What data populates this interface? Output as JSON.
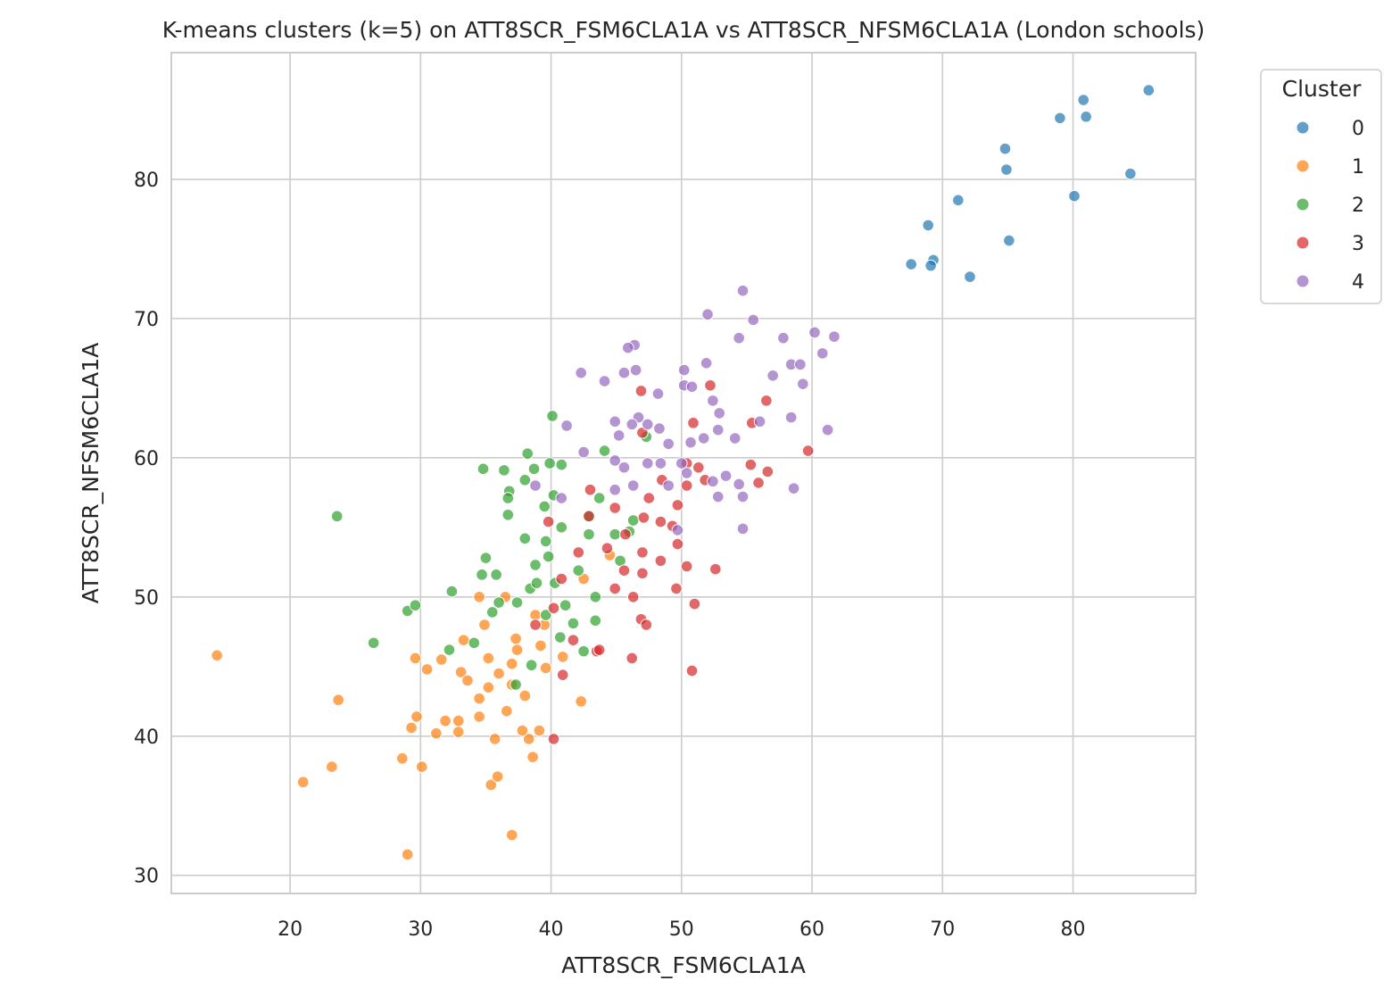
{
  "chart_data": {
    "type": "scatter",
    "title": "K-means clusters (k=5) on ATT8SCR_FSM6CLA1A vs ATT8SCR_NFSM6CLA1A (London schools)",
    "xlabel": "ATT8SCR_FSM6CLA1A",
    "ylabel": "ATT8SCR_NFSM6CLA1A",
    "xlim": [
      10.9,
      89.4
    ],
    "ylim": [
      28.7,
      89.1
    ],
    "xticks": [
      20,
      30,
      40,
      50,
      60,
      70,
      80
    ],
    "yticks": [
      30,
      40,
      50,
      60,
      70,
      80
    ],
    "grid": true,
    "legend": {
      "title": "Cluster",
      "placement": "outside-top-right"
    },
    "series": [
      {
        "name": "0",
        "color": "#1f77b4",
        "points": [
          [
            85.8,
            86.4
          ],
          [
            80.8,
            85.7
          ],
          [
            81.0,
            84.5
          ],
          [
            79.0,
            84.4
          ],
          [
            74.8,
            82.2
          ],
          [
            74.9,
            80.7
          ],
          [
            84.4,
            80.4
          ],
          [
            80.1,
            78.8
          ],
          [
            71.2,
            78.5
          ],
          [
            68.9,
            76.7
          ],
          [
            75.1,
            75.6
          ],
          [
            69.3,
            74.2
          ],
          [
            67.6,
            73.9
          ],
          [
            69.1,
            73.8
          ],
          [
            72.1,
            73.0
          ]
        ]
      },
      {
        "name": "1",
        "color": "#ff7f0e",
        "points": [
          [
            14.4,
            45.8
          ],
          [
            21.0,
            36.7
          ],
          [
            23.2,
            37.8
          ],
          [
            23.7,
            42.6
          ],
          [
            29.0,
            31.5
          ],
          [
            37.0,
            32.9
          ],
          [
            28.6,
            38.4
          ],
          [
            30.1,
            37.8
          ],
          [
            29.3,
            40.6
          ],
          [
            29.7,
            41.4
          ],
          [
            29.6,
            45.6
          ],
          [
            30.5,
            44.8
          ],
          [
            31.2,
            40.2
          ],
          [
            31.9,
            41.1
          ],
          [
            32.9,
            41.1
          ],
          [
            32.9,
            40.3
          ],
          [
            33.1,
            44.6
          ],
          [
            33.6,
            44.0
          ],
          [
            34.5,
            42.7
          ],
          [
            34.5,
            41.4
          ],
          [
            35.4,
            36.5
          ],
          [
            35.9,
            37.1
          ],
          [
            35.7,
            39.8
          ],
          [
            36.6,
            41.8
          ],
          [
            38.3,
            39.8
          ],
          [
            38.6,
            38.5
          ],
          [
            39.1,
            40.4
          ],
          [
            42.3,
            42.5
          ],
          [
            34.5,
            50.0
          ],
          [
            36.5,
            50.0
          ],
          [
            33.3,
            46.9
          ],
          [
            31.6,
            45.5
          ],
          [
            37.3,
            47.0
          ],
          [
            39.2,
            46.5
          ],
          [
            39.6,
            44.9
          ],
          [
            40.9,
            45.7
          ],
          [
            42.5,
            51.3
          ],
          [
            44.5,
            53.0
          ],
          [
            35.2,
            45.6
          ],
          [
            37.0,
            43.7
          ],
          [
            36.0,
            44.5
          ],
          [
            37.0,
            45.2
          ],
          [
            34.9,
            48.0
          ],
          [
            38.0,
            42.9
          ],
          [
            37.8,
            40.4
          ],
          [
            35.2,
            43.5
          ],
          [
            38.8,
            48.7
          ],
          [
            39.5,
            48.0
          ],
          [
            37.4,
            46.2
          ]
        ]
      },
      {
        "name": "2",
        "color": "#2ca02c",
        "points": [
          [
            23.6,
            55.8
          ],
          [
            26.4,
            46.7
          ],
          [
            29.0,
            49.0
          ],
          [
            29.6,
            49.4
          ],
          [
            32.4,
            50.4
          ],
          [
            32.2,
            46.2
          ],
          [
            34.8,
            59.2
          ],
          [
            36.4,
            59.1
          ],
          [
            36.8,
            57.6
          ],
          [
            36.7,
            57.1
          ],
          [
            36.7,
            55.9
          ],
          [
            35.0,
            52.8
          ],
          [
            38.2,
            60.3
          ],
          [
            40.1,
            63.0
          ],
          [
            40.8,
            59.5
          ],
          [
            38.7,
            59.2
          ],
          [
            38.0,
            58.4
          ],
          [
            39.9,
            59.6
          ],
          [
            38.0,
            54.2
          ],
          [
            39.5,
            56.5
          ],
          [
            39.6,
            54.0
          ],
          [
            40.2,
            57.3
          ],
          [
            40.8,
            55.0
          ],
          [
            38.8,
            52.3
          ],
          [
            39.8,
            52.9
          ],
          [
            40.3,
            51.0
          ],
          [
            38.4,
            50.6
          ],
          [
            37.4,
            49.6
          ],
          [
            36.0,
            49.6
          ],
          [
            35.5,
            48.9
          ],
          [
            34.7,
            51.6
          ],
          [
            35.8,
            51.6
          ],
          [
            34.1,
            46.7
          ],
          [
            37.3,
            43.7
          ],
          [
            38.5,
            45.1
          ],
          [
            39.6,
            48.7
          ],
          [
            41.1,
            49.4
          ],
          [
            42.1,
            51.9
          ],
          [
            42.9,
            54.5
          ],
          [
            43.7,
            57.1
          ],
          [
            42.9,
            55.8
          ],
          [
            44.9,
            54.5
          ],
          [
            46.3,
            55.5
          ],
          [
            45.3,
            52.6
          ],
          [
            43.4,
            50.0
          ],
          [
            42.5,
            46.1
          ],
          [
            43.4,
            48.3
          ],
          [
            40.7,
            47.1
          ],
          [
            41.7,
            48.1
          ],
          [
            47.3,
            61.5
          ],
          [
            46.0,
            54.7
          ],
          [
            44.1,
            60.5
          ],
          [
            38.9,
            51.0
          ]
        ]
      },
      {
        "name": "3",
        "color": "#d62728",
        "points": [
          [
            40.2,
            39.8
          ],
          [
            50.8,
            44.7
          ],
          [
            46.2,
            45.6
          ],
          [
            40.9,
            44.4
          ],
          [
            43.5,
            46.1
          ],
          [
            46.9,
            48.4
          ],
          [
            47.3,
            48.0
          ],
          [
            51.0,
            49.5
          ],
          [
            52.6,
            52.0
          ],
          [
            49.6,
            50.6
          ],
          [
            47.0,
            51.7
          ],
          [
            46.9,
            64.8
          ],
          [
            52.2,
            65.2
          ],
          [
            56.5,
            64.1
          ],
          [
            55.4,
            62.5
          ],
          [
            59.7,
            60.5
          ],
          [
            56.6,
            59.0
          ],
          [
            55.3,
            59.5
          ],
          [
            55.9,
            58.2
          ],
          [
            50.9,
            62.5
          ],
          [
            47.0,
            61.8
          ],
          [
            51.3,
            59.3
          ],
          [
            50.4,
            59.6
          ],
          [
            50.4,
            58.0
          ],
          [
            49.7,
            56.6
          ],
          [
            48.4,
            55.4
          ],
          [
            47.1,
            55.7
          ],
          [
            45.7,
            54.5
          ],
          [
            44.3,
            53.5
          ],
          [
            42.9,
            55.8
          ],
          [
            39.8,
            55.4
          ],
          [
            40.8,
            51.3
          ],
          [
            42.1,
            53.2
          ],
          [
            45.6,
            51.9
          ],
          [
            48.4,
            52.6
          ],
          [
            49.7,
            53.8
          ],
          [
            47.0,
            53.2
          ],
          [
            44.9,
            50.6
          ],
          [
            46.3,
            50.0
          ],
          [
            43.7,
            46.2
          ],
          [
            41.7,
            46.9
          ],
          [
            43.0,
            57.7
          ],
          [
            44.9,
            56.4
          ],
          [
            48.5,
            58.4
          ],
          [
            47.5,
            57.1
          ],
          [
            51.8,
            58.4
          ],
          [
            49.3,
            55.1
          ],
          [
            50.4,
            52.2
          ],
          [
            38.8,
            48.0
          ],
          [
            40.2,
            49.2
          ]
        ]
      },
      {
        "name": "4",
        "color": "#9467bd",
        "points": [
          [
            54.7,
            72.0
          ],
          [
            52.0,
            70.3
          ],
          [
            55.5,
            69.9
          ],
          [
            54.4,
            68.6
          ],
          [
            57.8,
            68.6
          ],
          [
            60.2,
            69.0
          ],
          [
            61.7,
            68.7
          ],
          [
            60.8,
            67.5
          ],
          [
            46.4,
            68.1
          ],
          [
            45.9,
            67.9
          ],
          [
            42.3,
            66.1
          ],
          [
            45.6,
            66.1
          ],
          [
            46.5,
            66.3
          ],
          [
            44.1,
            65.5
          ],
          [
            48.2,
            64.6
          ],
          [
            50.2,
            66.3
          ],
          [
            51.9,
            66.8
          ],
          [
            50.2,
            65.2
          ],
          [
            50.8,
            65.1
          ],
          [
            57.0,
            65.9
          ],
          [
            58.4,
            66.7
          ],
          [
            59.1,
            66.7
          ],
          [
            59.3,
            65.3
          ],
          [
            61.2,
            62.0
          ],
          [
            58.4,
            62.9
          ],
          [
            58.6,
            57.8
          ],
          [
            54.7,
            54.9
          ],
          [
            52.8,
            57.2
          ],
          [
            54.7,
            57.2
          ],
          [
            41.2,
            62.3
          ],
          [
            42.5,
            60.4
          ],
          [
            44.9,
            62.6
          ],
          [
            46.7,
            62.9
          ],
          [
            46.2,
            62.4
          ],
          [
            45.2,
            61.6
          ],
          [
            47.4,
            62.4
          ],
          [
            48.3,
            62.1
          ],
          [
            49.0,
            61.0
          ],
          [
            51.7,
            61.4
          ],
          [
            50.7,
            61.1
          ],
          [
            52.8,
            62.0
          ],
          [
            54.1,
            61.4
          ],
          [
            52.9,
            63.2
          ],
          [
            52.4,
            64.1
          ],
          [
            56.0,
            62.6
          ],
          [
            47.4,
            59.6
          ],
          [
            48.4,
            59.6
          ],
          [
            50.4,
            58.9
          ],
          [
            52.4,
            58.3
          ],
          [
            53.4,
            58.7
          ],
          [
            54.4,
            58.1
          ],
          [
            45.6,
            59.3
          ],
          [
            46.3,
            58.0
          ],
          [
            44.9,
            57.7
          ],
          [
            38.8,
            58.0
          ],
          [
            40.8,
            57.1
          ],
          [
            49.7,
            54.8
          ],
          [
            50.0,
            59.6
          ],
          [
            44.9,
            59.8
          ],
          [
            49.0,
            58.0
          ]
        ]
      }
    ]
  }
}
